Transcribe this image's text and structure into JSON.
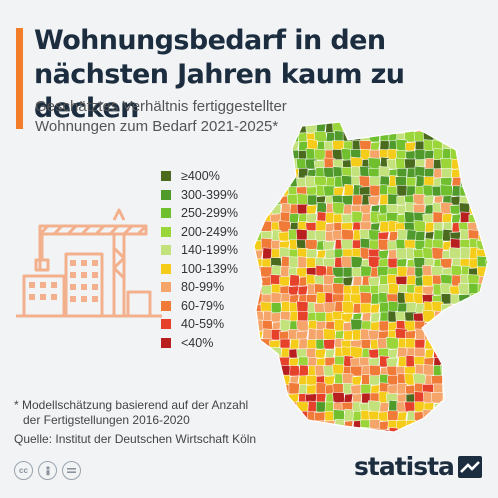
{
  "header": {
    "title_line1": "Wohnungsbedarf in den",
    "title_line2": "nächsten Jahren kaum zu decken",
    "subtitle_line1": "Geschätztes Verhältnis fertiggestellter",
    "subtitle_line2": "Wohnungen zum Bedarf 2021-2025*"
  },
  "legend": [
    {
      "label": "≥400%",
      "color": "#4a6b1e"
    },
    {
      "label": "300-399%",
      "color": "#4f9a2a"
    },
    {
      "label": "250-299%",
      "color": "#6fbf2f"
    },
    {
      "label": "200-249%",
      "color": "#9ad63a"
    },
    {
      "label": "140-199%",
      "color": "#c3e27c"
    },
    {
      "label": "100-139%",
      "color": "#f6cc1a"
    },
    {
      "label": "80-99%",
      "color": "#f5a46a"
    },
    {
      "label": "60-79%",
      "color": "#f07a38"
    },
    {
      "label": "40-59%",
      "color": "#e5412b"
    },
    {
      "label": "<40%",
      "color": "#b82020"
    }
  ],
  "illustration": {
    "icon": "building-crane-icon",
    "color": "#f3b08c"
  },
  "map": {
    "region": "Deutschland",
    "icon": "germany-district-map"
  },
  "footer": {
    "footnote_line1": "* Modellschätzung basierend auf der Anzahl",
    "footnote_line2": "der Fertigstellungen 2016-2020",
    "source": "Quelle: Institut der Deutschen Wirtschaft Köln",
    "license_icons": [
      "cc-icon",
      "person-icon",
      "equals-icon"
    ],
    "brand": "statista"
  },
  "colors": {
    "accent": "#f47d2a",
    "title": "#1c2d3f",
    "background": "#f1f3f5"
  }
}
